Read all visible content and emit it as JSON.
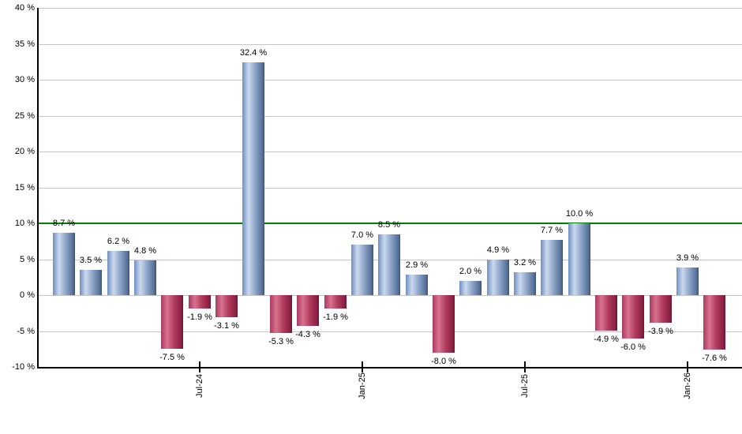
{
  "chart_data": {
    "type": "bar",
    "title": "",
    "xlabel": "",
    "ylabel": "",
    "ylim": [
      -10,
      40
    ],
    "grid": true,
    "legend_position": "none",
    "y_tick_values": [
      40,
      35,
      30,
      25,
      20,
      15,
      10,
      5,
      0,
      -5,
      -10
    ],
    "y_tick_labels": [
      "40 %",
      "35 %",
      "30 %",
      "25 %",
      "20 %",
      "15 %",
      "10 %",
      "5 %",
      "0 %",
      "-5 %",
      "-10 %"
    ],
    "x_ticks": [
      {
        "label": "Jul-24",
        "bar_index": 5
      },
      {
        "label": "Jan-25",
        "bar_index": 11
      },
      {
        "label": "Jul-25",
        "bar_index": 17
      },
      {
        "label": "Jan-26",
        "bar_index": 23
      }
    ],
    "values": [
      8.7,
      3.5,
      6.2,
      4.8,
      -7.5,
      -1.9,
      -3.1,
      32.4,
      -5.3,
      -4.3,
      -1.9,
      7.0,
      8.5,
      2.9,
      -8.0,
      2.0,
      4.9,
      3.2,
      7.7,
      10.0,
      -4.9,
      -6.0,
      -3.9,
      3.9,
      -7.6
    ],
    "bar_labels": [
      "8.7 %",
      "3.5 %",
      "6.2 %",
      "4.8 %",
      "-7.5 %",
      "-1.9 %",
      "-3.1 %",
      "32.4 %",
      "-5.3 %",
      "-4.3 %",
      "-1.9 %",
      "7.0 %",
      "8.5 %",
      "2.9 %",
      "-8.0 %",
      "2.0 %",
      "4.9 %",
      "3.2 %",
      "7.7 %",
      "10.0 %",
      "-4.9 %",
      "-6.0 %",
      "-3.9 %",
      "3.9 %",
      "-7.6 %"
    ],
    "reference_line": {
      "value": 10,
      "color": "#008000"
    },
    "colors": {
      "positive_bar_gradient": [
        "#6f8fc2",
        "#cbd9ee",
        "#8aa2c6",
        "#5a7198",
        "#3a527d"
      ],
      "negative_bar_gradient": [
        "#a83c60",
        "#d9718f",
        "#b03b5c",
        "#8c2144",
        "#6b1832"
      ],
      "gridline": "#c6c6c6",
      "axis": "#000000",
      "label_text": "#000000"
    }
  }
}
